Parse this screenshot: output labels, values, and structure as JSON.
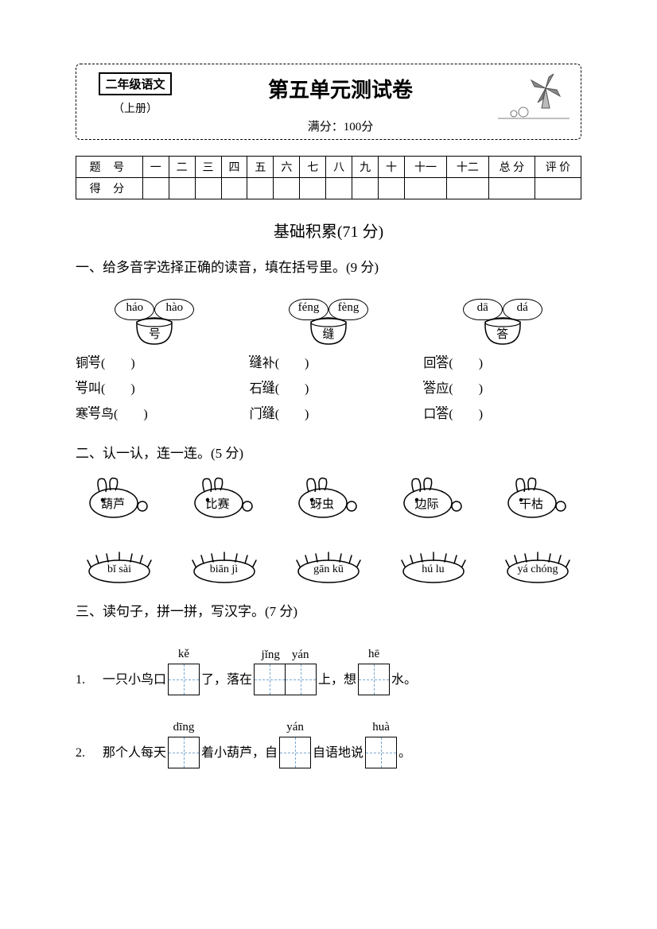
{
  "header": {
    "grade": "二年级语文",
    "volume": "（上册）",
    "title": "第五单元测试卷",
    "full_score_label": "满分：100分"
  },
  "score_table": {
    "row1_label": "题 号",
    "row2_label": "得 分",
    "cols": [
      "一",
      "二",
      "三",
      "四",
      "五",
      "六",
      "七",
      "八",
      "九",
      "十",
      "十一",
      "十二",
      "总 分",
      "评 价"
    ]
  },
  "section1": {
    "title": "基础积累(71 分)"
  },
  "q1": {
    "heading": "一、给多音字选择正确的读音，填在括号里。(9 分)",
    "groups": [
      {
        "clouds": [
          "háo",
          "hào"
        ],
        "char": "号",
        "lines": [
          {
            "pre": "铜",
            "dot": "号",
            "post": "(　　)"
          },
          {
            "pre": "",
            "dot": "号",
            "post": "叫(　　)"
          },
          {
            "pre": "寒",
            "dot": "号",
            "post": "鸟(　　)"
          }
        ]
      },
      {
        "clouds": [
          "féng",
          "fèng"
        ],
        "char": "缝",
        "lines": [
          {
            "pre": "",
            "dot": "缝",
            "post": "补(　　)"
          },
          {
            "pre": "石",
            "dot": "缝",
            "post": "(　　)"
          },
          {
            "pre": "门",
            "dot": "缝",
            "post": "(　　)"
          }
        ]
      },
      {
        "clouds": [
          "dā",
          "dá"
        ],
        "char": "答",
        "lines": [
          {
            "pre": "回",
            "dot": "答",
            "post": "(　　)"
          },
          {
            "pre": "答",
            "dot": "",
            "post": "应(　　)"
          },
          {
            "pre": "口",
            "dot": "答",
            "post": "(　　)"
          }
        ]
      }
    ]
  },
  "q2": {
    "heading": "二、认一认，连一连。(5 分)",
    "top": [
      "葫芦",
      "比赛",
      "蚜虫",
      "边际",
      "干枯"
    ],
    "bottom": [
      "bǐ sài",
      "biān jì",
      "gān kū",
      "hú lu",
      "yá chóng"
    ]
  },
  "q3": {
    "heading": "三、读句子，拼一拼，写汉字。(7 分)",
    "lines": [
      {
        "num": "1.",
        "parts": [
          {
            "type": "txt",
            "v": "一只小鸟口"
          },
          {
            "type": "cell",
            "pinyin": "kě",
            "n": 1
          },
          {
            "type": "txt",
            "v": "了，落在"
          },
          {
            "type": "cell",
            "pinyin": "jǐng　yán",
            "n": 2
          },
          {
            "type": "txt",
            "v": "上，想"
          },
          {
            "type": "cell",
            "pinyin": "hē",
            "n": 1
          },
          {
            "type": "txt",
            "v": "水。"
          }
        ]
      },
      {
        "num": "2.",
        "parts": [
          {
            "type": "txt",
            "v": "那个人每天"
          },
          {
            "type": "cell",
            "pinyin": "dīng",
            "n": 1
          },
          {
            "type": "txt",
            "v": "着小葫芦，自"
          },
          {
            "type": "cell",
            "pinyin": "yán",
            "n": 1
          },
          {
            "type": "txt",
            "v": "自语地说"
          },
          {
            "type": "cell",
            "pinyin": "huà",
            "n": 1
          },
          {
            "type": "txt",
            "v": "。"
          }
        ]
      }
    ]
  }
}
